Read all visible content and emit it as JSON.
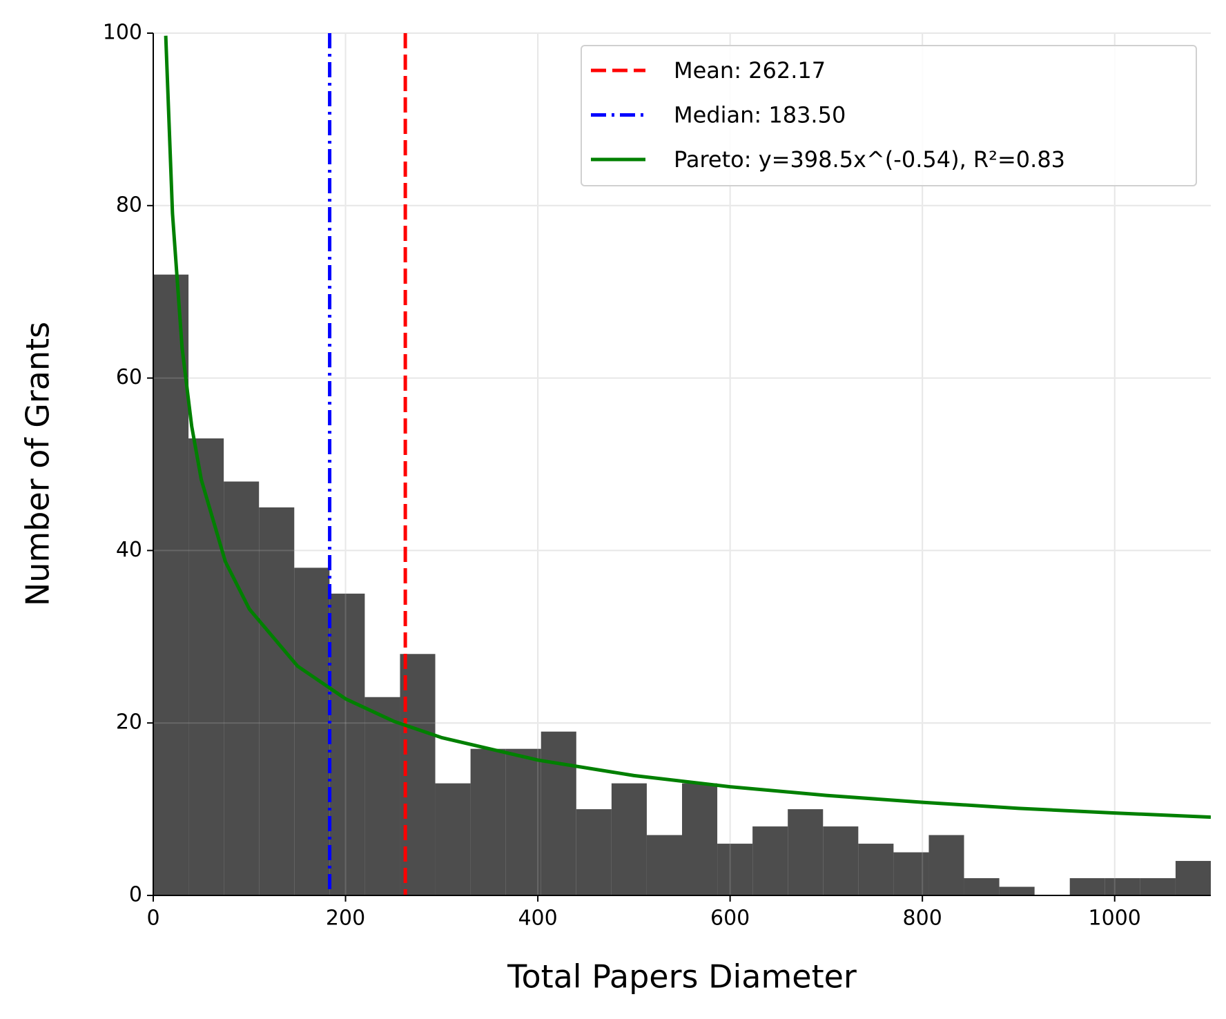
{
  "chart_data": {
    "type": "histogram",
    "xlabel": "Total Papers Diameter",
    "ylabel": "Number of Grants",
    "bins": [
      0,
      36.67,
      73.33,
      110,
      146.67,
      183.33,
      220,
      256.67,
      293.33,
      330,
      366.67,
      403.33,
      440,
      476.67,
      513.33,
      550,
      586.67,
      623.33,
      660,
      696.67,
      733.33,
      770,
      806.67,
      843.33,
      880,
      916.67,
      953.33,
      990,
      1026.67,
      1063.33,
      1100
    ],
    "counts": [
      72,
      53,
      48,
      45,
      38,
      35,
      23,
      28,
      13,
      17,
      17,
      19,
      10,
      13,
      7,
      13,
      6,
      8,
      10,
      8,
      6,
      5,
      7,
      2,
      1,
      0,
      2,
      2,
      2,
      4
    ],
    "color": "#4d4d4d",
    "xlim": [
      0,
      1100
    ],
    "xticks": [
      0,
      200,
      400,
      600,
      800,
      1000
    ],
    "ylim": [
      0,
      100
    ],
    "yticks": [
      0,
      20,
      40,
      60,
      80,
      100
    ],
    "grid": true,
    "legend": "upper right",
    "series": [
      {
        "name": "Mean: 262.17",
        "type": "vline",
        "value": 262.17,
        "color": "#ff0000",
        "style": "dashed"
      },
      {
        "name": "Median: 183.50",
        "type": "vline",
        "value": 183.5,
        "color": "#0000ff",
        "style": "dashdot"
      },
      {
        "name": "Pareto: y=398.5x^(-0.54), R²=0.83",
        "type": "line",
        "color": "#008000",
        "style": "solid",
        "x": [
          13,
          20,
          30,
          40,
          50,
          75,
          100,
          150,
          200,
          250,
          300,
          400,
          500,
          600,
          700,
          800,
          900,
          1000,
          1100
        ],
        "values": [
          99.7,
          79.1,
          63.5,
          54.4,
          48.2,
          38.7,
          33.2,
          26.6,
          22.8,
          20.2,
          18.3,
          15.7,
          13.9,
          12.6,
          11.6,
          10.8,
          10.1,
          9.56,
          9.08
        ]
      }
    ]
  }
}
